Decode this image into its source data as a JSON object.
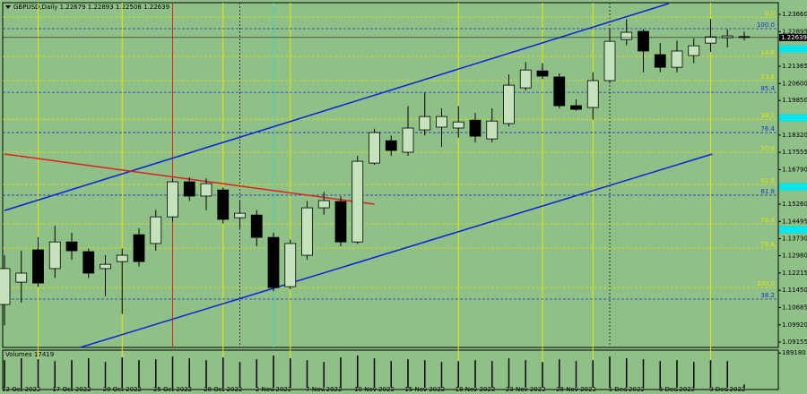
{
  "chart_data": {
    "type": "candlestick",
    "header": "GBPUSD,Daily  1.22679 1.22893 1.22508 1.22639",
    "categories": [
      null,
      "12 Oct 2022",
      null,
      null,
      "17 Oct 2022",
      null,
      null,
      "20 Oct 2022",
      null,
      null,
      "25 Oct 2022",
      null,
      null,
      "28 Oct 2022",
      null,
      null,
      "2 Nov 2022",
      null,
      null,
      "7 Nov 2022",
      null,
      null,
      "10 Nov 2022",
      null,
      null,
      "15 Nov 2022",
      null,
      null,
      "18 Nov 2022",
      null,
      null,
      "23 Nov 2022",
      null,
      null,
      "28 Nov 2022",
      null,
      null,
      "1 Dec 2022",
      null,
      null,
      "6 Dec 2022",
      null,
      null,
      "9 Dec 2022",
      null
    ],
    "open": [
      1.1082,
      1.1181,
      1.1324,
      1.1241,
      1.1359,
      1.1316,
      1.1241,
      1.1272,
      1.1391,
      1.1352,
      1.147,
      1.1625,
      1.1562,
      1.1589,
      1.1466,
      1.1478,
      1.1379,
      1.1161,
      1.13,
      1.151,
      1.1538,
      1.1359,
      1.1708,
      1.1807,
      1.1756,
      1.1855,
      1.1867,
      1.1863,
      1.1898,
      1.1815,
      1.1883,
      1.2041,
      1.2116,
      1.2089,
      1.1962,
      1.1954,
      1.2073,
      1.2255,
      1.2291,
      1.2188,
      1.2132,
      1.2184,
      1.2239,
      1.2263,
      1.22679
    ],
    "high": [
      1.13,
      1.132,
      1.138,
      1.143,
      1.14,
      1.133,
      1.13,
      1.133,
      1.142,
      1.15,
      1.164,
      1.1645,
      1.164,
      1.16,
      1.154,
      1.15,
      1.14,
      1.137,
      1.154,
      1.158,
      1.156,
      1.174,
      1.186,
      1.183,
      1.196,
      1.202,
      1.195,
      1.196,
      1.193,
      1.195,
      1.21,
      1.2155,
      1.215,
      1.2105,
      1.199,
      1.211,
      1.23,
      1.2345,
      1.23,
      1.224,
      1.225,
      1.226,
      1.2345,
      1.23,
      1.22893
    ],
    "low": [
      1.099,
      1.109,
      1.116,
      1.12,
      1.128,
      1.12,
      1.112,
      1.104,
      1.125,
      1.132,
      1.145,
      1.154,
      1.15,
      1.144,
      1.142,
      1.134,
      1.114,
      1.115,
      1.128,
      1.148,
      1.134,
      1.135,
      1.17,
      1.174,
      1.174,
      1.183,
      1.178,
      1.182,
      1.18,
      1.18,
      1.187,
      1.203,
      1.208,
      1.195,
      1.194,
      1.19,
      1.206,
      1.223,
      1.211,
      1.211,
      1.211,
      1.215,
      1.22,
      1.222,
      1.22508
    ],
    "close": [
      1.1241,
      1.1221,
      1.1177,
      1.1359,
      1.132,
      1.1221,
      1.126,
      1.13,
      1.1272,
      1.147,
      1.1625,
      1.1562,
      1.1617,
      1.1459,
      1.1486,
      1.1379,
      1.1157,
      1.1352,
      1.151,
      1.1542,
      1.1359,
      1.1716,
      1.1843,
      1.1764,
      1.1863,
      1.1914,
      1.1914,
      1.189,
      1.1827,
      1.1894,
      1.2053,
      1.212,
      1.2093,
      1.1962,
      1.1946,
      1.2073,
      1.2247,
      1.2287,
      1.2204,
      1.2132,
      1.2204,
      1.2227,
      1.2267,
      1.2271,
      1.22639
    ],
    "up_color": "#c4e2bc",
    "down_color": "#000000",
    "background": "#8fc088",
    "ylim": [
      1.0892,
      1.241
    ],
    "yticks": [
      {
        "value": 1.2366,
        "label": "1.23660"
      },
      1.22895,
      1.21365,
      {
        "value": 1.206,
        "label": "1.20600"
      },
      {
        "value": 1.1985,
        "label": "1.19850"
      },
      {
        "value": 1.1832,
        "label": "1.18320"
      },
      1.17555,
      {
        "value": 1.1679,
        "label": "1.16790"
      },
      {
        "value": 1.1526,
        "label": "1.15260"
      },
      1.14495,
      {
        "value": 1.1373,
        "label": "1.13730"
      },
      {
        "value": 1.1298,
        "label": "1.12980"
      },
      1.12215,
      {
        "value": 1.1145,
        "label": "1.11450"
      },
      1.10685,
      {
        "value": 1.0992,
        "label": "1.09920"
      },
      1.09155
    ],
    "last_price": {
      "value": 1.22639,
      "label": "1.22639"
    },
    "axis_markers": [
      1.2213,
      1.1909,
      1.1603,
      1.1413
    ],
    "axis_marker_color": "#00e5ee",
    "levels": [
      {
        "label": "0.0",
        "value": 1.2354,
        "color": "#e6e600"
      },
      {
        "label": "100.0",
        "value": 1.2303,
        "color": "#1a35c8"
      },
      {
        "label": "14.6",
        "value": 1.218,
        "color": "#e6e600"
      },
      {
        "label": "23.6",
        "value": 1.2073,
        "color": "#e6e600"
      },
      {
        "label": "85.4",
        "value": 1.2021,
        "color": "#1a35c8"
      },
      {
        "label": "38.2",
        "value": 1.1902,
        "color": "#e6e600"
      },
      {
        "label": "76.4",
        "value": 1.1843,
        "color": "#1a35c8"
      },
      {
        "label": "50.0",
        "value": 1.1756,
        "color": "#e6e600"
      },
      {
        "label": "61.8",
        "value": 1.1613,
        "color": "#e6e600"
      },
      {
        "label": "61.8",
        "value": 1.1566,
        "color": "#1a35c8"
      },
      {
        "label": "76.4",
        "value": 1.1439,
        "color": "#e6e600"
      },
      {
        "label": "78.6",
        "value": 1.1332,
        "color": "#e6e600"
      },
      {
        "label": "100.0",
        "value": 1.1157,
        "color": "#e6e600"
      },
      {
        "label": "38.2",
        "value": 1.1106,
        "color": "#1a35c8"
      }
    ],
    "trendlines": [
      {
        "x": [
          0,
          39.5
        ],
        "y": [
          1.1498,
          1.2414
        ],
        "color": "#0a22d8"
      },
      {
        "x": [
          4.5,
          42.1
        ],
        "y": [
          1.0892,
          1.1748
        ],
        "color": "#0a22d8"
      },
      {
        "x": [
          0,
          22
        ],
        "y": [
          1.1748,
          1.1526
        ],
        "color": "#e02020"
      }
    ],
    "volume": {
      "label": "Volumes 17419",
      "values": [
        150000,
        160000,
        155000,
        145000,
        150000,
        160000,
        140000,
        165000,
        150000,
        155000,
        170000,
        160000,
        150000,
        165000,
        140000,
        155000,
        175000,
        160000,
        150000,
        140000,
        165000,
        175000,
        160000,
        145000,
        155000,
        150000,
        140000,
        145000,
        150000,
        145000,
        160000,
        150000,
        140000,
        155000,
        145000,
        150000,
        170000,
        160000,
        155000,
        145000,
        150000,
        140000,
        150000,
        145000,
        17419
      ],
      "vlim": [
        0,
        195000
      ],
      "vticks": [
        {
          "value": 189180,
          "label": "189180"
        }
      ]
    }
  }
}
